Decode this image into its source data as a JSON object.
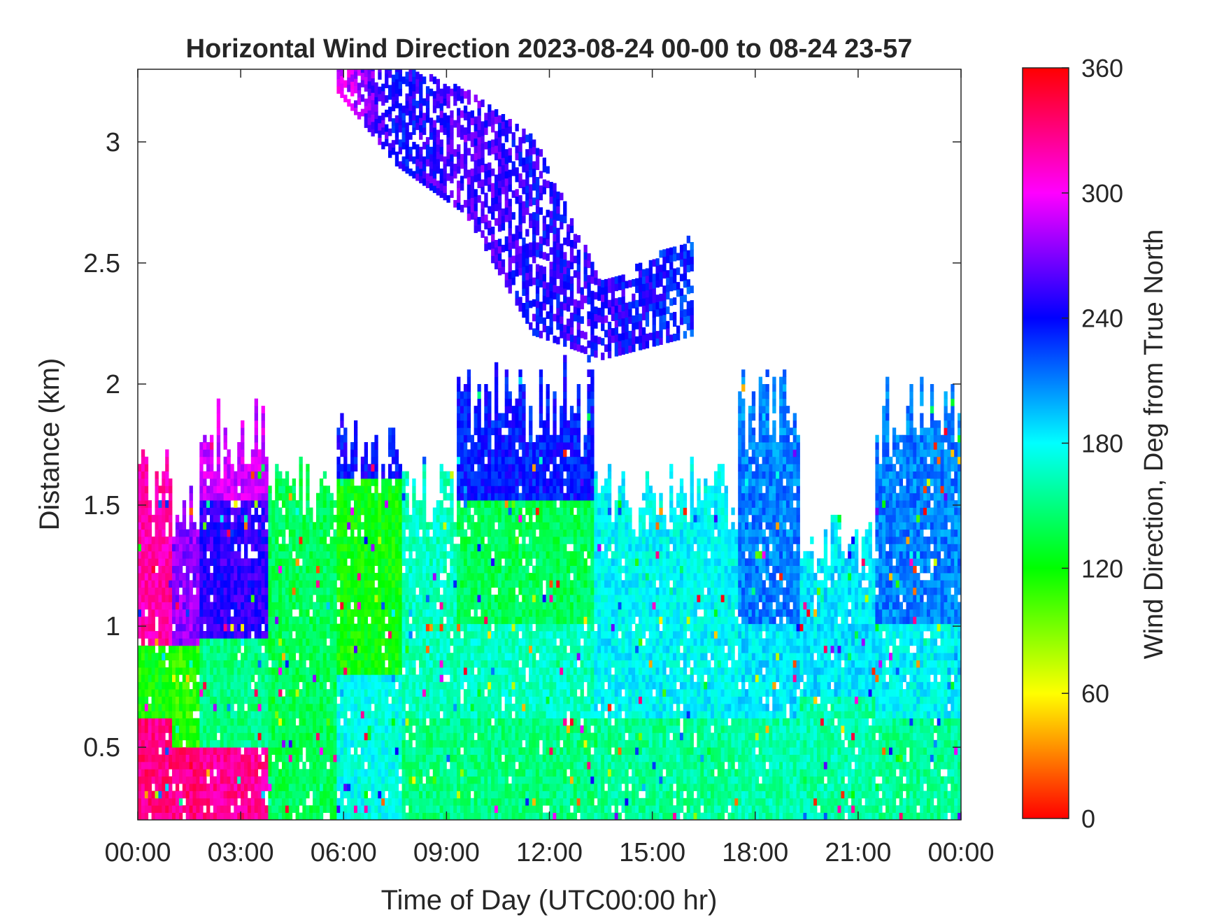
{
  "chart_data": {
    "type": "heatmap",
    "title": "Horizontal Wind Direction 2023-08-24 00-00 to 08-24 23-57",
    "xlabel": "Time of Day (UTC00:00 hr)",
    "ylabel": "Distance (km)",
    "colorbar_label": "Wind Direction, Deg from True North",
    "xlim": [
      0,
      24
    ],
    "ylim": [
      0.2,
      3.3
    ],
    "clim": [
      0,
      360
    ],
    "x_ticks": [
      0,
      3,
      6,
      9,
      12,
      15,
      18,
      21,
      24
    ],
    "x_tick_labels": [
      "00:00",
      "03:00",
      "06:00",
      "09:00",
      "12:00",
      "15:00",
      "18:00",
      "21:00",
      "00:00"
    ],
    "y_ticks": [
      0.5,
      1,
      1.5,
      2,
      2.5,
      3
    ],
    "y_tick_labels": [
      "0.5",
      "1",
      "1.5",
      "2",
      "2.5",
      "3"
    ],
    "colorbar_ticks": [
      0,
      60,
      120,
      180,
      240,
      300,
      360
    ],
    "colorbar_tick_labels": [
      "0",
      "60",
      "120",
      "180",
      "240",
      "300",
      "360"
    ],
    "colormap": [
      "#ff0000",
      "#ffff00",
      "#00ff00",
      "#00ffff",
      "#0000ff",
      "#ff00ff",
      "#ff0000"
    ],
    "grid": false,
    "columns": [
      {
        "t_start": 0.0,
        "t_end": 1.0,
        "top_km": 1.7,
        "segments": [
          {
            "h_max": 0.6,
            "dir": 330
          },
          {
            "h_max": 0.9,
            "dir": 120
          },
          {
            "h_max": 1.7,
            "dir": 320
          }
        ]
      },
      {
        "t_start": 1.0,
        "t_end": 1.8,
        "top_km": 1.6,
        "segments": [
          {
            "h_max": 0.5,
            "dir": 330
          },
          {
            "h_max": 0.9,
            "dir": 110
          },
          {
            "h_max": 1.6,
            "dir": 275
          }
        ]
      },
      {
        "t_start": 1.8,
        "t_end": 3.8,
        "top_km": 1.85,
        "segments": [
          {
            "h_max": 0.5,
            "dir": 325
          },
          {
            "h_max": 0.95,
            "dir": 150
          },
          {
            "h_max": 1.5,
            "dir": 250
          },
          {
            "h_max": 1.85,
            "dir": 290
          }
        ]
      },
      {
        "t_start": 3.8,
        "t_end": 5.8,
        "top_km": 1.65,
        "segments": [
          {
            "h_max": 1.65,
            "dir": 140
          }
        ]
      },
      {
        "t_start": 5.8,
        "t_end": 7.7,
        "top_km": 1.8,
        "segments": [
          {
            "h_max": 0.8,
            "dir": 175
          },
          {
            "h_max": 1.6,
            "dir": 120
          },
          {
            "h_max": 1.8,
            "dir": 240
          }
        ]
      },
      {
        "t_start": 7.7,
        "t_end": 9.3,
        "top_km": 1.6,
        "segments": [
          {
            "h_max": 0.6,
            "dir": 150
          },
          {
            "h_max": 1.6,
            "dir": 165
          }
        ]
      },
      {
        "t_start": 9.3,
        "t_end": 13.3,
        "top_km": 2.0,
        "segments": [
          {
            "h_max": 0.6,
            "dir": 150
          },
          {
            "h_max": 1.0,
            "dir": 165
          },
          {
            "h_max": 1.5,
            "dir": 140
          },
          {
            "h_max": 2.0,
            "dir": 235
          }
        ]
      },
      {
        "t_start": 13.3,
        "t_end": 17.5,
        "top_km": 1.6,
        "segments": [
          {
            "h_max": 0.6,
            "dir": 155
          },
          {
            "h_max": 1.6,
            "dir": 180
          }
        ]
      },
      {
        "t_start": 17.5,
        "t_end": 19.3,
        "top_km": 2.0,
        "segments": [
          {
            "h_max": 0.6,
            "dir": 160
          },
          {
            "h_max": 1.0,
            "dir": 185
          },
          {
            "h_max": 2.0,
            "dir": 210
          }
        ]
      },
      {
        "t_start": 19.3,
        "t_end": 21.5,
        "top_km": 1.4,
        "segments": [
          {
            "h_max": 0.7,
            "dir": 160
          },
          {
            "h_max": 1.4,
            "dir": 185
          }
        ]
      },
      {
        "t_start": 21.5,
        "t_end": 24.0,
        "top_km": 1.95,
        "segments": [
          {
            "h_max": 0.6,
            "dir": 155
          },
          {
            "h_max": 1.0,
            "dir": 180
          },
          {
            "h_max": 1.95,
            "dir": 210
          }
        ]
      }
    ],
    "upper_layer": [
      {
        "t": 5.8,
        "bottom_km": 3.2,
        "top_km": 3.3,
        "dir": 300
      },
      {
        "t": 7.5,
        "bottom_km": 2.9,
        "top_km": 3.3,
        "dir": 240
      },
      {
        "t": 9.5,
        "bottom_km": 2.7,
        "top_km": 3.2,
        "dir": 260
      },
      {
        "t": 11.5,
        "bottom_km": 2.2,
        "top_km": 3.0,
        "dir": 245
      },
      {
        "t": 13.5,
        "bottom_km": 2.1,
        "top_km": 2.4,
        "dir": 250
      },
      {
        "t": 16.2,
        "bottom_km": 2.2,
        "top_km": 2.6,
        "dir": 230
      }
    ]
  }
}
